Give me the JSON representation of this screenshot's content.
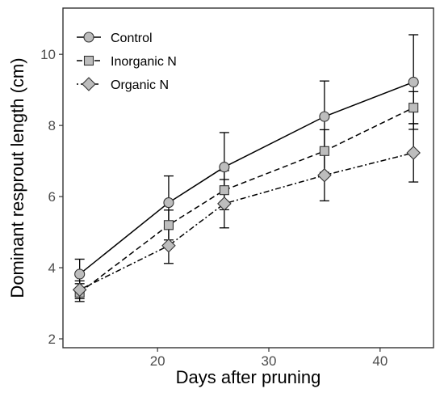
{
  "chart_data": {
    "type": "line",
    "xlabel": "Days after pruning",
    "ylabel": "Dominant resprout length (cm)",
    "xlim": [
      11.5,
      44.8
    ],
    "ylim": [
      1.75,
      11.3
    ],
    "xticks": [
      20,
      30,
      40
    ],
    "yticks": [
      2,
      4,
      6,
      8,
      10
    ],
    "grid": false,
    "legend_position": "top-left",
    "x": [
      13,
      21,
      26,
      35,
      43
    ],
    "series": [
      {
        "name": "Control",
        "values": [
          3.82,
          5.83,
          6.83,
          8.25,
          9.22
        ],
        "errors": [
          0.42,
          0.75,
          0.97,
          1.0,
          1.33
        ],
        "marker": "circle",
        "line_style": "solid"
      },
      {
        "name": "Inorganic N",
        "values": [
          3.3,
          5.2,
          6.18,
          7.28,
          8.5
        ],
        "errors": [
          0.25,
          0.42,
          0.55,
          0.6,
          0.45
        ],
        "marker": "square",
        "line_style": "dashed"
      },
      {
        "name": "Organic N",
        "values": [
          3.38,
          4.62,
          5.8,
          6.6,
          7.23
        ],
        "errors": [
          0.25,
          0.5,
          0.68,
          0.72,
          0.82
        ],
        "marker": "diamond",
        "line_style": "dotdash"
      }
    ],
    "colors": {
      "line": "#000000",
      "marker_fill": "#bdbdbd",
      "marker_stroke": "#333333",
      "axis": "#333333",
      "tick_label": "#4d4d4d"
    }
  }
}
